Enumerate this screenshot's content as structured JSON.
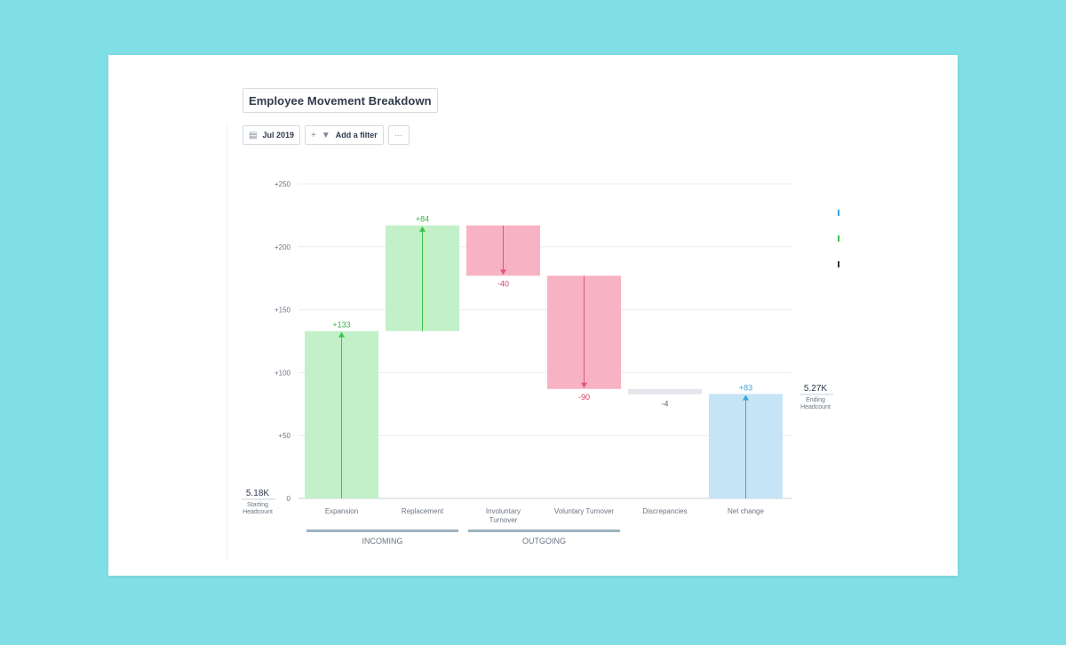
{
  "widget": {
    "title": "Employee Movement Breakdown",
    "toolbar": {
      "date_label": "Jul 2019",
      "filter_label": "Add a filter",
      "more_label": "···"
    }
  },
  "chart_data": {
    "type": "waterfall",
    "title": "Employee Movement Breakdown",
    "ylim": [
      0,
      250
    ],
    "yticks": [
      {
        "value": 0,
        "label": "0"
      },
      {
        "value": 50,
        "label": "+50"
      },
      {
        "value": 100,
        "label": "+100"
      },
      {
        "value": 150,
        "label": "+150"
      },
      {
        "value": 200,
        "label": "+200"
      },
      {
        "value": 250,
        "label": "+250"
      }
    ],
    "start": {
      "value": "5.18K",
      "label": "Starting Headcount"
    },
    "end": {
      "value": "5.27K",
      "label": "Ending Headcount"
    },
    "bars": [
      {
        "category": "Expansion",
        "start": 0,
        "end": 133,
        "label": "+133",
        "kind": "increase"
      },
      {
        "category": "Replacement",
        "start": 133,
        "end": 217,
        "label": "+84",
        "kind": "increase"
      },
      {
        "category": "Involuntary Turnover",
        "start": 217,
        "end": 177,
        "label": "-40",
        "kind": "decrease"
      },
      {
        "category": "Voluntary Turnover",
        "start": 177,
        "end": 87,
        "label": "-90",
        "kind": "decrease"
      },
      {
        "category": "Discrepancies",
        "start": 87,
        "end": 83,
        "label": "-4",
        "kind": "neutral"
      },
      {
        "category": "Net change",
        "start": 0,
        "end": 83,
        "label": "+83",
        "kind": "total"
      }
    ],
    "groups": [
      {
        "name": "INCOMING",
        "from": 0,
        "to": 1
      },
      {
        "name": "OUTGOING",
        "from": 2,
        "to": 3
      }
    ],
    "colors": {
      "increase_fill": "#c2f0c8",
      "increase_line": "#3cc24c",
      "increase_text": "#33b545",
      "decrease_fill": "#f7b3c3",
      "decrease_line": "#e2567b",
      "decrease_text": "#d63b63",
      "neutral_fill": "#e3e6ea",
      "neutral_text": "#5a6474",
      "total_fill": "#c5e4f5",
      "total_line": "#3aa5dc",
      "total_text": "#3aa5dc",
      "grid": "#e9ecf0",
      "axis_text": "#6b7583",
      "group_bar": "#9fb2c0"
    }
  }
}
